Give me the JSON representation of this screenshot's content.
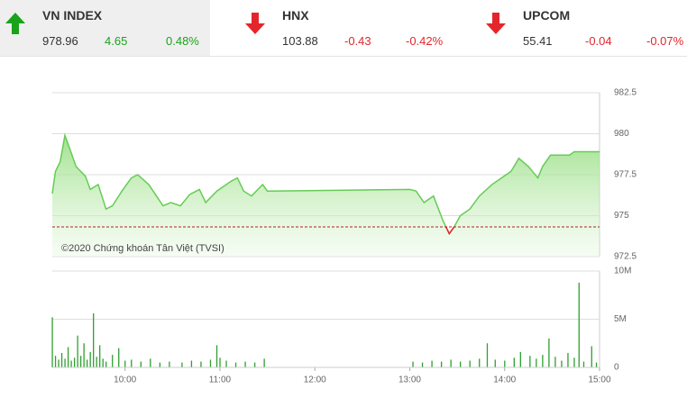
{
  "header": {
    "indices": [
      {
        "name": "VN INDEX",
        "value": "978.96",
        "change": "4.65",
        "percent": "0.48%"
      },
      {
        "name": "HNX",
        "value": "103.88",
        "change": "-0.43",
        "percent": "-0.42%"
      },
      {
        "name": "UPCOM",
        "value": "55.41",
        "change": "-0.04",
        "percent": "-0.07%"
      }
    ]
  },
  "chart_data": [
    {
      "type": "line",
      "watermark": "©2020 Chứng khoán Tân Việt (TVSI)",
      "color": "#66cc55",
      "below_color": "#e3262b",
      "x": [
        554,
        556,
        559,
        562,
        565,
        569,
        575,
        578,
        583,
        588,
        592,
        598,
        604,
        608,
        615,
        624,
        629,
        635,
        641,
        647,
        651,
        658,
        667,
        671,
        675,
        680,
        687,
        690,
        780,
        784,
        789,
        795,
        801,
        805,
        808,
        812,
        818,
        824,
        832,
        838,
        844,
        849,
        855,
        861,
        864,
        869,
        881,
        884,
        900
      ],
      "values": [
        976.35,
        977.7,
        978.3,
        979.9,
        979.1,
        978.0,
        977.4,
        976.6,
        976.9,
        975.4,
        975.6,
        976.5,
        977.3,
        977.5,
        976.9,
        975.6,
        975.8,
        975.6,
        976.3,
        976.6,
        975.8,
        976.5,
        977.1,
        977.3,
        976.5,
        976.2,
        976.9,
        976.5,
        976.6,
        976.5,
        975.8,
        976.2,
        974.7,
        973.9,
        974.3,
        975.0,
        975.4,
        976.2,
        976.9,
        977.3,
        977.7,
        978.5,
        978.0,
        977.3,
        978.0,
        978.7,
        978.7,
        978.9,
        978.9
      ],
      "reference": 974.31,
      "xlim": [
        554,
        900
      ],
      "ylim": [
        972.5,
        982.5
      ],
      "yticks": [
        972.5,
        975,
        977.5,
        980,
        982.5
      ],
      "grid": true
    },
    {
      "type": "bar",
      "color": "#2ea02e",
      "x": [
        554,
        556,
        558,
        560,
        562,
        564,
        566,
        568,
        570,
        572,
        574,
        576,
        578,
        580,
        582,
        584,
        586,
        588,
        592,
        596,
        600,
        604,
        610,
        616,
        622,
        628,
        636,
        642,
        648,
        654,
        658,
        660,
        664,
        670,
        676,
        682,
        688,
        782,
        788,
        794,
        800,
        806,
        812,
        818,
        824,
        829,
        834,
        840,
        846,
        850,
        856,
        860,
        864,
        868,
        872,
        876,
        880,
        884,
        887,
        890,
        895,
        898
      ],
      "values": [
        5.2,
        1.2,
        0.8,
        1.5,
        0.9,
        2.1,
        0.7,
        1.0,
        3.3,
        1.2,
        2.5,
        0.8,
        1.6,
        5.6,
        1.1,
        2.3,
        0.9,
        0.6,
        1.3,
        2.0,
        0.7,
        0.8,
        0.6,
        0.9,
        0.5,
        0.6,
        0.5,
        0.7,
        0.6,
        0.8,
        2.3,
        1.0,
        0.7,
        0.5,
        0.6,
        0.5,
        0.9,
        0.6,
        0.5,
        0.7,
        0.6,
        0.8,
        0.6,
        0.7,
        0.9,
        2.5,
        0.8,
        0.7,
        1.0,
        1.6,
        1.2,
        0.9,
        1.3,
        3.0,
        1.1,
        0.7,
        1.5,
        1.0,
        8.8,
        0.6,
        2.2,
        0.5
      ],
      "xlim": [
        554,
        900
      ],
      "ylim": [
        0,
        10
      ],
      "yticks": [
        0,
        {
          "value": 5,
          "label": "5M"
        },
        {
          "value": 10,
          "label": "10M"
        }
      ],
      "xticks": [
        {
          "value": 600,
          "label": "10:00"
        },
        {
          "value": 660,
          "label": "11:00"
        },
        {
          "value": 720,
          "label": "12:00"
        },
        {
          "value": 780,
          "label": "13:00"
        },
        {
          "value": 840,
          "label": "14:00"
        },
        {
          "value": 900,
          "label": "15:00"
        }
      ],
      "grid": true
    }
  ]
}
